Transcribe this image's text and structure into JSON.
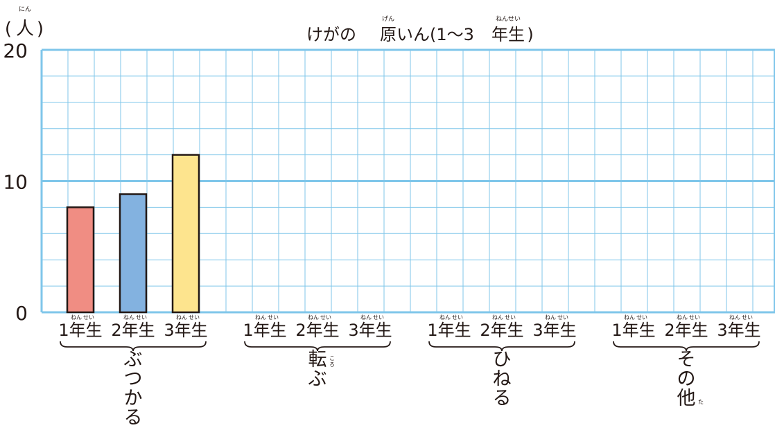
{
  "chart_data": {
    "type": "bar",
    "title": {
      "prefix": "けがの",
      "kanji": "原",
      "kanji_ruby": "げん",
      "rest": "いん(1〜3",
      "kanji2": "年生",
      "kanji2_ruby": "ねんせい",
      "close": ")"
    },
    "y_unit": {
      "kanji": "人",
      "ruby": "にん",
      "open": "(",
      "close": ")"
    },
    "ylim": [
      0,
      20
    ],
    "y_ticks": [
      "0",
      "10",
      "20"
    ],
    "grid": true,
    "groups": [
      {
        "label_chars": [
          "ぶ",
          "つ",
          "か",
          "る"
        ],
        "bars": [
          {
            "grade": "1年生",
            "value": 8,
            "color": "#f08d83"
          },
          {
            "grade": "2年生",
            "value": 9,
            "color": "#83b2e0"
          },
          {
            "grade": "3年生",
            "value": 12,
            "color": "#fde48e"
          }
        ]
      },
      {
        "label_chars": [
          "転",
          "ぶ"
        ],
        "label_ruby": "ころ",
        "bars": [
          {
            "grade": "1年生",
            "value": null
          },
          {
            "grade": "2年生",
            "value": null
          },
          {
            "grade": "3年生",
            "value": null
          }
        ]
      },
      {
        "label_chars": [
          "ひ",
          "ね",
          "る"
        ],
        "bars": [
          {
            "grade": "1年生",
            "value": null
          },
          {
            "grade": "2年生",
            "value": null
          },
          {
            "grade": "3年生",
            "value": null
          }
        ]
      },
      {
        "label_chars": [
          "そ",
          "の",
          "他"
        ],
        "label_ruby": "た",
        "bars": [
          {
            "grade": "1年生",
            "value": null
          },
          {
            "grade": "2年生",
            "value": null
          },
          {
            "grade": "3年生",
            "value": null
          }
        ]
      }
    ],
    "grade_ruby": [
      "ねん",
      "せい"
    ]
  }
}
